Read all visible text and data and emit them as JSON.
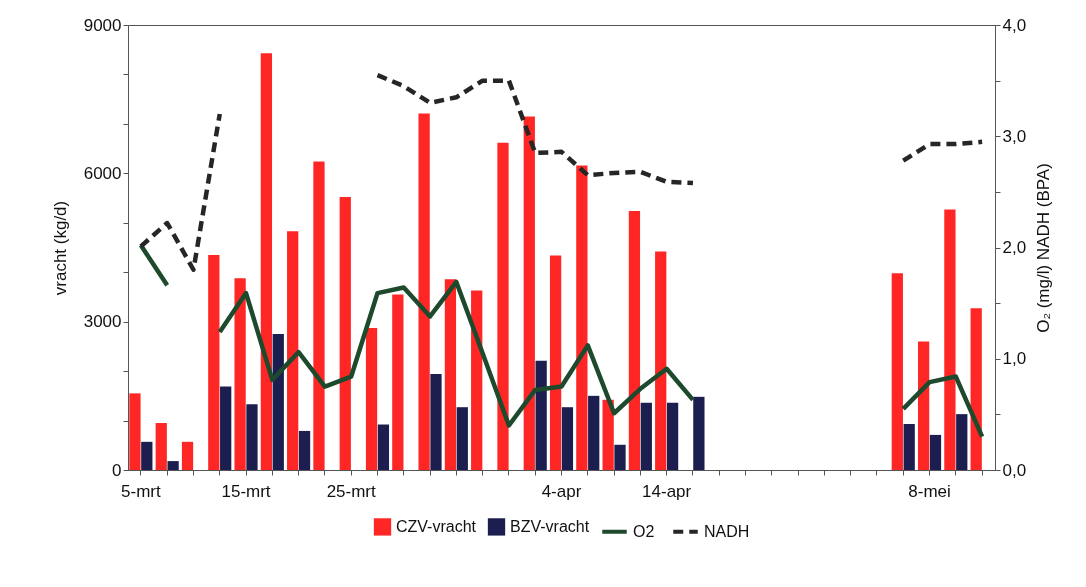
{
  "chart_data": {
    "type": "bar",
    "ylabel": "vracht (kg/d)",
    "y2label": "O₂ (mg/l)    NADH (BPA)",
    "legend": "bottom",
    "grid": false,
    "categories": [
      "5-mrt",
      null,
      null,
      null,
      "15-mrt",
      null,
      null,
      null,
      "25-mrt",
      null,
      null,
      null,
      null,
      null,
      null,
      null,
      "4-apr",
      null,
      null,
      null,
      "14-apr",
      null,
      null,
      null,
      null,
      null,
      null,
      null,
      null,
      null,
      "8-mei",
      null,
      null
    ],
    "ylim": [
      0,
      9000
    ],
    "yticks": [
      0,
      {
        "value": 1000,
        "label": null
      },
      {
        "value": 2000,
        "label": null
      },
      3000,
      {
        "value": 4000,
        "label": null
      },
      {
        "value": 5000,
        "label": null
      },
      6000,
      {
        "value": 7000,
        "label": null
      },
      {
        "value": 8000,
        "label": null
      },
      9000
    ],
    "y2lim": [
      0,
      4
    ],
    "y2ticks": [
      {
        "value": 0,
        "label": "0,0"
      },
      {
        "value": 0.5,
        "label": null
      },
      {
        "value": 1,
        "label": "1,0"
      },
      {
        "value": 1.5,
        "label": null
      },
      {
        "value": 2,
        "label": "2,0"
      },
      {
        "value": 2.5,
        "label": null
      },
      {
        "value": 3,
        "label": "3,0"
      },
      {
        "value": 3.5,
        "label": null
      },
      {
        "value": 4,
        "label": "4,0"
      }
    ],
    "series": [
      {
        "name": "CZV-vracht",
        "color": "#ff2626",
        "values": [
          1550,
          950,
          570,
          4350,
          3880,
          8430,
          4830,
          6240,
          5520,
          2870,
          3550,
          7210,
          3860,
          3630,
          6620,
          7150,
          4340,
          6160,
          1420,
          5240,
          4420,
          null,
          null,
          null,
          null,
          null,
          null,
          null,
          null,
          3980,
          2600,
          5270,
          3270
        ]
      },
      {
        "name": "BZV-vracht",
        "color": "#1b1e4f",
        "values": [
          570,
          180,
          null,
          1690,
          1330,
          2750,
          790,
          null,
          null,
          920,
          null,
          1940,
          1270,
          null,
          null,
          2210,
          1270,
          1500,
          510,
          1360,
          1360,
          1480,
          null,
          null,
          null,
          null,
          null,
          null,
          null,
          930,
          710,
          1130,
          null
        ]
      },
      {
        "name": "O2",
        "type": "line",
        "axis": "y2",
        "color": "#1d4a2c",
        "line_style": "solid",
        "values": [
          2.02,
          1.66,
          null,
          1.24,
          1.59,
          0.81,
          1.06,
          0.75,
          0.84,
          1.59,
          1.64,
          1.38,
          1.69,
          1.05,
          0.4,
          0.72,
          0.75,
          1.12,
          0.51,
          0.73,
          0.91,
          0.63,
          null,
          null,
          null,
          null,
          null,
          null,
          null,
          0.55,
          0.79,
          0.84,
          0.3
        ]
      },
      {
        "name": "NADH",
        "type": "line",
        "axis": "y2",
        "color": "#262626",
        "line_style": "dashed",
        "values": [
          2.01,
          2.22,
          1.8,
          3.2,
          null,
          null,
          null,
          null,
          null,
          3.55,
          3.45,
          3.3,
          3.35,
          3.5,
          3.5,
          2.85,
          2.86,
          2.65,
          2.67,
          2.68,
          2.59,
          2.58,
          null,
          null,
          null,
          null,
          null,
          null,
          null,
          2.78,
          2.93,
          2.93,
          2.95
        ]
      }
    ]
  }
}
